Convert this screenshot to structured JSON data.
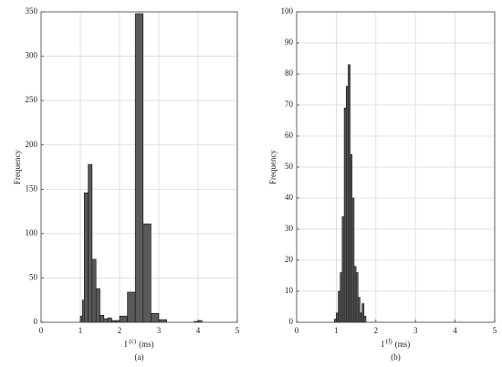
{
  "chart_data": [
    {
      "type": "histogram",
      "caption": "(a)",
      "y_label": "Frequency",
      "x_label": {
        "symbol": "I",
        "superscript": "(c)",
        "unit": "(ms)"
      },
      "bins": [
        1.0,
        1.05,
        1.1,
        1.2,
        1.3,
        1.4,
        1.5,
        1.6,
        1.7,
        1.8,
        1.9,
        2.0,
        2.2,
        2.4,
        2.6,
        2.8,
        3.0,
        3.2,
        3.9,
        4.0,
        4.1
      ],
      "values": [
        7,
        25,
        146,
        178,
        71,
        38,
        8,
        4,
        5,
        2,
        2,
        7,
        34,
        348,
        111,
        10,
        3,
        0,
        1,
        2
      ],
      "color": "#595959",
      "grid": true,
      "xlim": [
        0,
        5
      ],
      "xticks": [
        0,
        1,
        2,
        3,
        4,
        5
      ],
      "ylim": [
        0,
        350
      ],
      "yticks": [
        0,
        50,
        100,
        150,
        200,
        250,
        300,
        350
      ]
    },
    {
      "type": "histogram",
      "caption": "(b)",
      "y_label": "Frequency",
      "x_label": {
        "symbol": "I",
        "superscript": "(f)",
        "unit": "(ms)"
      },
      "bins": [
        0.95,
        1.0,
        1.05,
        1.1,
        1.15,
        1.2,
        1.25,
        1.3,
        1.35,
        1.4,
        1.45,
        1.5,
        1.55,
        1.6,
        1.65,
        1.7,
        1.75
      ],
      "values": [
        1,
        3,
        10,
        16,
        34,
        69,
        76,
        83,
        54,
        40,
        18,
        16,
        8,
        3,
        6,
        2
      ],
      "color": "#595959",
      "grid": true,
      "xlim": [
        0,
        5
      ],
      "xticks": [
        0,
        1,
        2,
        3,
        4,
        5
      ],
      "ylim": [
        0,
        100
      ],
      "yticks": [
        0,
        10,
        20,
        30,
        40,
        50,
        60,
        70,
        80,
        90,
        100
      ]
    }
  ]
}
